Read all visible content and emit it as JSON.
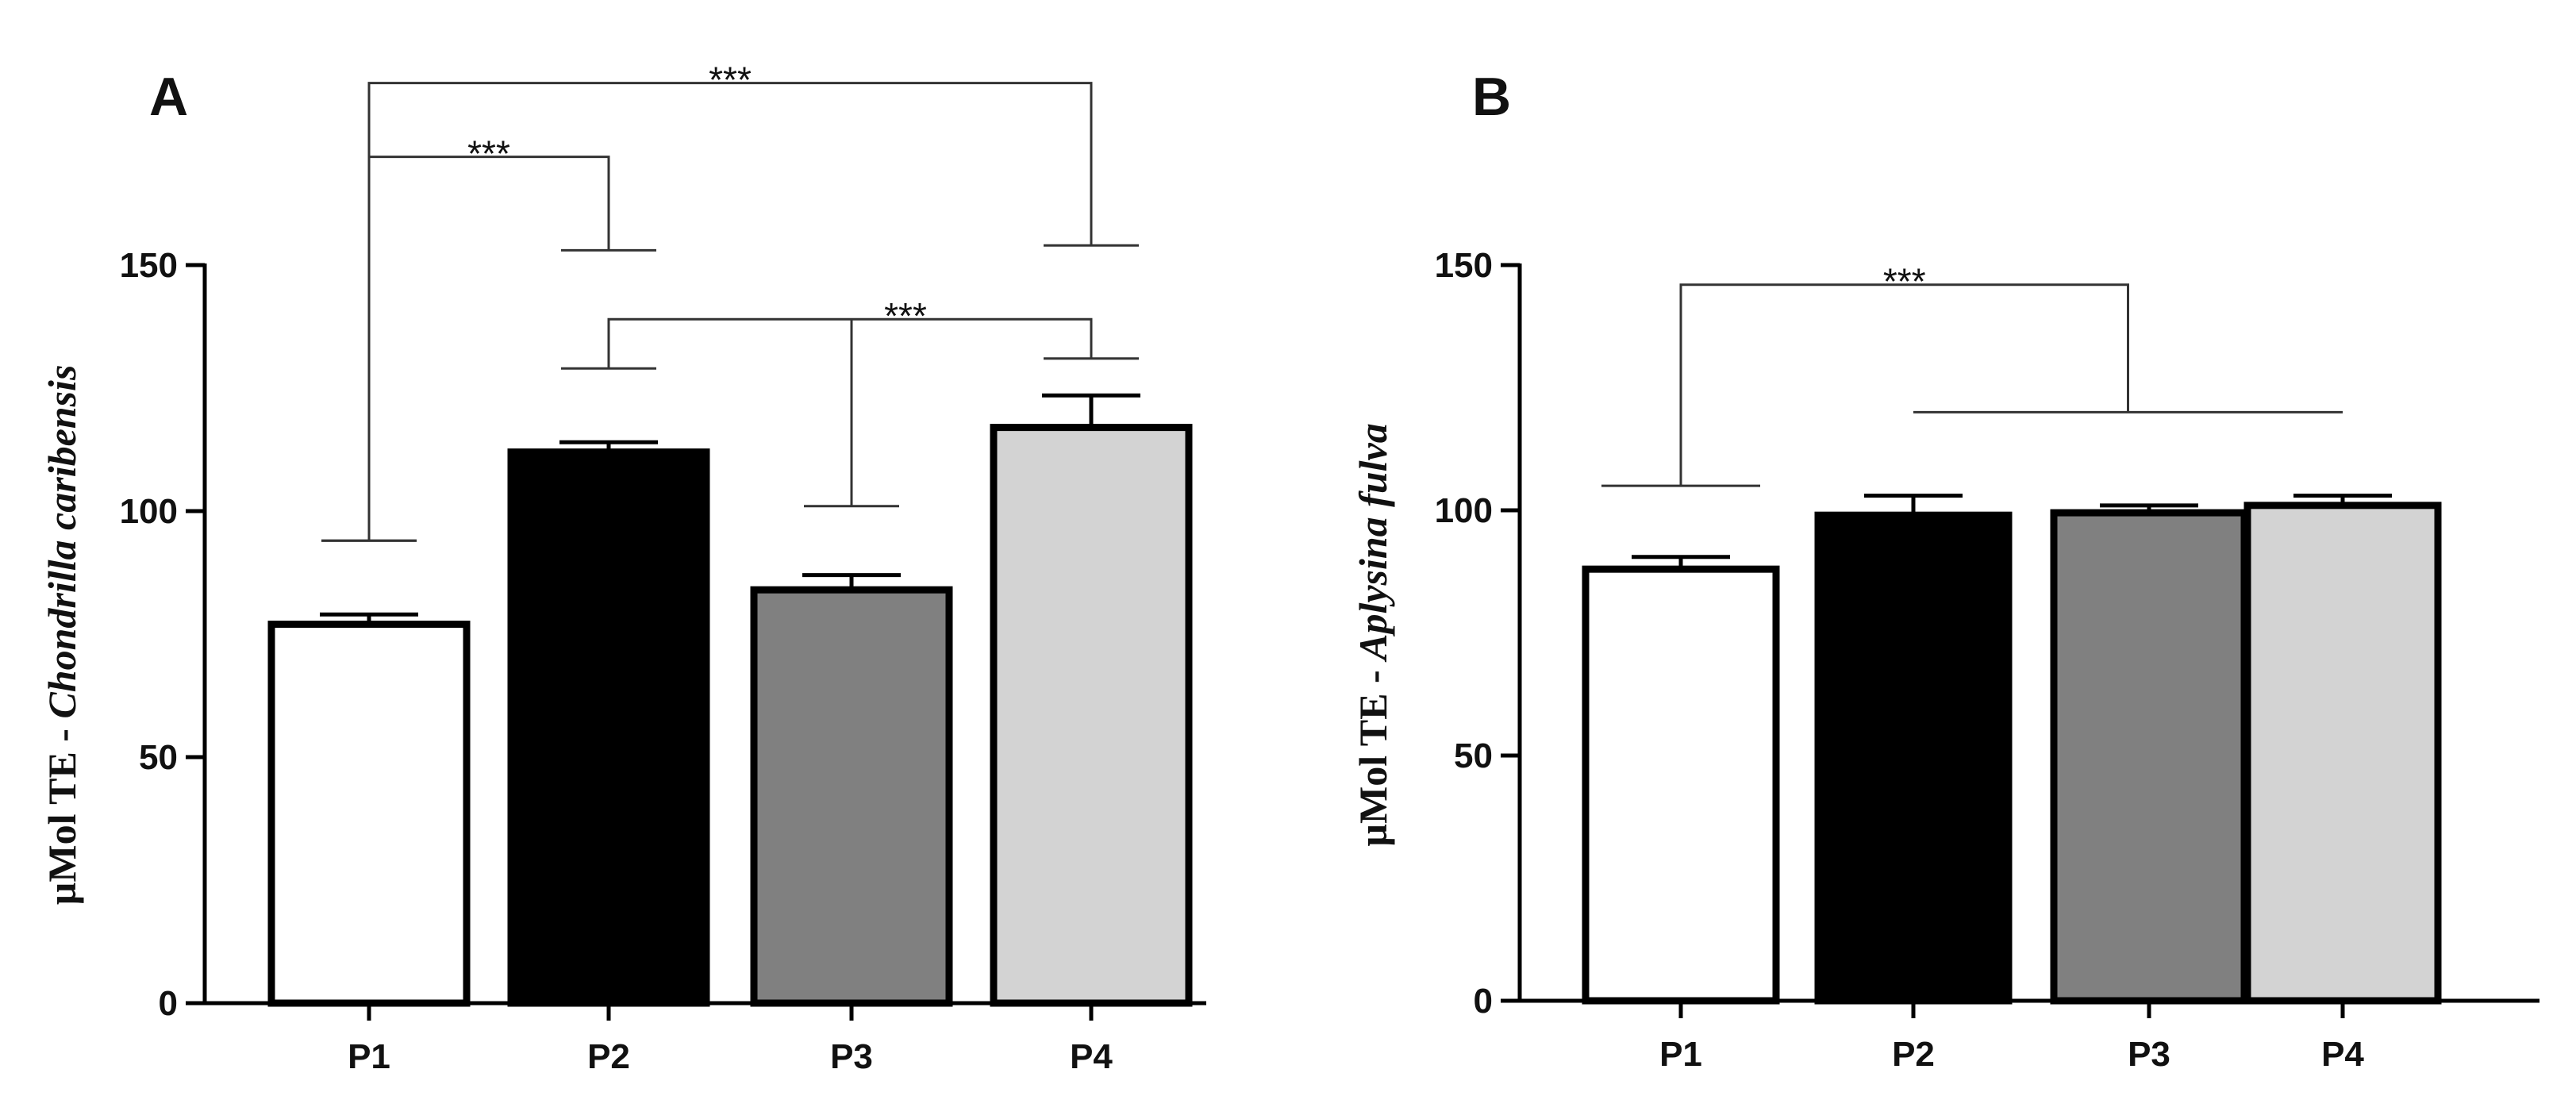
{
  "chart_data": [
    {
      "type": "bar",
      "panel": "A",
      "categories": [
        "P1",
        "P2",
        "P3",
        "P4"
      ],
      "values": [
        77,
        112,
        84,
        117
      ],
      "errors": [
        2,
        2,
        3,
        6.5
      ],
      "bar_colors": [
        "#ffffff",
        "#000000",
        "#808080",
        "#d3d3d3"
      ],
      "ylabel_prefix": "µMol TE - ",
      "ylabel_species": "Chondrilla caribensis",
      "ylim": [
        0,
        150
      ],
      "yticks": [
        0,
        50,
        100,
        150
      ],
      "significance": [
        {
          "from": "P1",
          "to": "P2",
          "label": "***",
          "y": 172,
          "drop_from": 94,
          "drop_to": 153
        },
        {
          "from": "P1",
          "to": "P4",
          "label": "***",
          "y": 187,
          "drop_from": 94,
          "drop_to": 154
        },
        {
          "from": "P3",
          "to": "P4",
          "label": "***",
          "y": 139,
          "drop_from": 101,
          "drop_to": 131,
          "left_anchor": "P2",
          "left_drop_to": 129
        }
      ]
    },
    {
      "type": "bar",
      "panel": "B",
      "categories": [
        "P1",
        "P2",
        "P3",
        "P4"
      ],
      "values": [
        88,
        99,
        99.5,
        101
      ],
      "errors": [
        2.5,
        4,
        1.5,
        2
      ],
      "bar_colors": [
        "#ffffff",
        "#000000",
        "#808080",
        "#d3d3d3"
      ],
      "ylabel_prefix": "µMol TE - ",
      "ylabel_species": "Aplysina fulva",
      "ylim": [
        0,
        150
      ],
      "yticks": [
        0,
        50,
        100,
        150
      ],
      "significance": [
        {
          "from": "P1",
          "to": "P2-P4",
          "label": "***",
          "y": 146,
          "drop_from": 105,
          "group_line": 120,
          "group_from": "P2",
          "group_to": "P4"
        }
      ]
    }
  ]
}
